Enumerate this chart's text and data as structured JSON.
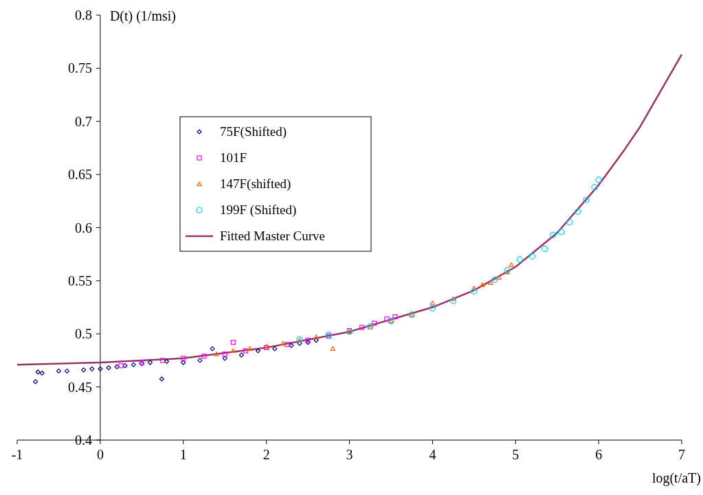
{
  "chart_data": {
    "type": "scatter",
    "ylabel": "D(t) (1/msi)",
    "xlabel": "log(t/aT)",
    "xlim": [
      -1,
      7
    ],
    "ylim": [
      0.4,
      0.8
    ],
    "xticks": [
      -1,
      0,
      1,
      2,
      3,
      4,
      5,
      6,
      7
    ],
    "yticks": [
      0.4,
      0.45,
      0.5,
      0.55,
      0.6,
      0.65,
      0.7,
      0.75,
      0.8
    ],
    "grid": false,
    "legend": "top left",
    "series": [
      {
        "name": "75F(Shifted)",
        "color": "#000080",
        "marker": "diamond",
        "x": [
          -0.78,
          -0.75,
          -0.7,
          -0.5,
          -0.4,
          -0.2,
          -0.1,
          0,
          0.1,
          0.2,
          0.3,
          0.4,
          0.5,
          0.6,
          0.74,
          0.8,
          1,
          1.2,
          1.35,
          1.5,
          1.7,
          1.9,
          2.1,
          2.3,
          2.4,
          2.5,
          2.6
        ],
        "values": [
          0.455,
          0.464,
          0.463,
          0.465,
          0.465,
          0.466,
          0.467,
          0.467,
          0.468,
          0.469,
          0.47,
          0.471,
          0.472,
          0.473,
          0.4575,
          0.474,
          0.473,
          0.475,
          0.486,
          0.477,
          0.48,
          0.484,
          0.486,
          0.489,
          0.491,
          0.492,
          0.494
        ]
      },
      {
        "name": "101F",
        "color": "#ff00ff",
        "marker": "square",
        "x": [
          0.25,
          0.5,
          0.75,
          1,
          1.25,
          1.5,
          1.6,
          1.75,
          2,
          2.25,
          2.5,
          2.75,
          3,
          3.15,
          3.3,
          3.45,
          3.55
        ],
        "values": [
          0.47,
          0.473,
          0.475,
          0.477,
          0.479,
          0.481,
          0.492,
          0.484,
          0.487,
          0.49,
          0.494,
          0.498,
          0.503,
          0.506,
          0.51,
          0.514,
          0.516
        ]
      },
      {
        "name": "147F(shifted)",
        "color": "#ff6600",
        "marker": "triangle",
        "x": [
          1.4,
          1.6,
          1.8,
          2,
          2.2,
          2.4,
          2.6,
          2.8,
          3,
          3.25,
          3.5,
          3.75,
          4,
          4.25,
          4.5,
          4.6,
          4.7,
          4.8,
          4.9,
          4.95
        ],
        "values": [
          0.481,
          0.484,
          0.486,
          0.488,
          0.491,
          0.494,
          0.497,
          0.486,
          0.502,
          0.506,
          0.512,
          0.518,
          0.529,
          0.533,
          0.543,
          0.546,
          0.548,
          0.553,
          0.558,
          0.565
        ]
      },
      {
        "name": "199F (Shifted)",
        "color": "#00ccff",
        "marker": "circle",
        "x": [
          2.4,
          2.75,
          3,
          3.25,
          3.5,
          3.75,
          4,
          4.25,
          4.5,
          4.75,
          4.9,
          5.05,
          5.2,
          5.35,
          5.45,
          5.55,
          5.65,
          5.75,
          5.85,
          5.95,
          6
        ],
        "values": [
          0.495,
          0.499,
          0.502,
          0.507,
          0.512,
          0.518,
          0.524,
          0.531,
          0.54,
          0.551,
          0.56,
          0.57,
          0.573,
          0.58,
          0.593,
          0.596,
          0.605,
          0.615,
          0.626,
          0.638,
          0.645
        ]
      },
      {
        "name": "Fitted Master Curve",
        "type": "line",
        "color": "#993366",
        "marker": "none",
        "x": [
          -1,
          0,
          1,
          2,
          3,
          4,
          4.5,
          5,
          5.5,
          6,
          6.3,
          6.5,
          7
        ],
        "values": [
          0.471,
          0.473,
          0.477,
          0.487,
          0.502,
          0.525,
          0.541,
          0.563,
          0.595,
          0.64,
          0.672,
          0.695,
          0.763
        ]
      }
    ]
  }
}
